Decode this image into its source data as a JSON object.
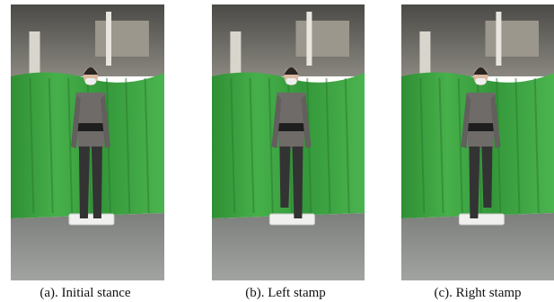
{
  "figure": {
    "panels": [
      {
        "caption": "(a). Initial stance"
      },
      {
        "caption": "(b). Left stamp"
      },
      {
        "caption": "(c). Right stamp"
      }
    ]
  }
}
